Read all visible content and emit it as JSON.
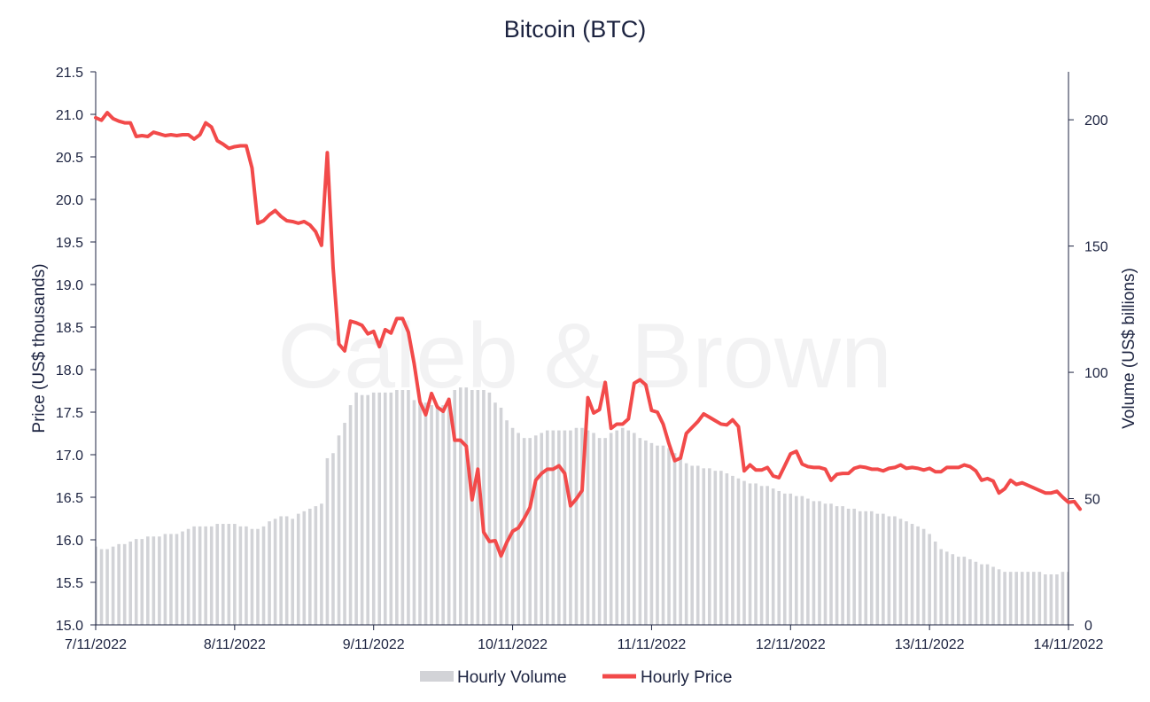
{
  "colors": {
    "price_line": "#f24a4a",
    "volume_bar": "#d2d3d7",
    "text": "#1c2340",
    "axis": "#1c2340",
    "watermark": "#f2f2f3"
  },
  "chart_data": {
    "type": "bar+line",
    "title": "Bitcoin (BTC)",
    "watermark": "Caleb & Brown",
    "ylabel_left": "Price (US$ thousands)",
    "ylabel_right": "Volume (US$ billions)",
    "ylim_left": [
      15.0,
      21.5
    ],
    "ylim_right": [
      0,
      219
    ],
    "yticks_left": [
      "15.0",
      "15.5",
      "16.0",
      "16.5",
      "17.0",
      "17.5",
      "18.0",
      "18.5",
      "19.0",
      "19.5",
      "20.0",
      "20.5",
      "21.0",
      "21.5"
    ],
    "yticks_right": [
      "0",
      "50",
      "100",
      "150",
      "200"
    ],
    "xlim_hours": [
      0,
      168
    ],
    "xticks": [
      {
        "label": "7/11/2022",
        "hour": 0
      },
      {
        "label": "8/11/2022",
        "hour": 24
      },
      {
        "label": "9/11/2022",
        "hour": 48
      },
      {
        "label": "10/11/2022",
        "hour": 72
      },
      {
        "label": "11/11/2022",
        "hour": 96
      },
      {
        "label": "12/11/2022",
        "hour": 120
      },
      {
        "label": "13/11/2022",
        "hour": 144
      },
      {
        "label": "14/11/2022",
        "hour": 168
      }
    ],
    "grid": false,
    "legend_position": "bottom-center",
    "series": [
      {
        "name": "Hourly Volume",
        "type": "bar",
        "axis": "right",
        "values": [
          31,
          30,
          30,
          31,
          32,
          32,
          33,
          34,
          34,
          35,
          35,
          35,
          36,
          36,
          36,
          37,
          38,
          39,
          39,
          39,
          39,
          40,
          40,
          40,
          40,
          39,
          39,
          38,
          38,
          39,
          41,
          42,
          43,
          43,
          42,
          44,
          45,
          46,
          47,
          48,
          66,
          68,
          75,
          80,
          87,
          92,
          91,
          91,
          92,
          92,
          92,
          92,
          93,
          93,
          93,
          89,
          88,
          88,
          87,
          87,
          87,
          90,
          93,
          94,
          94,
          93,
          93,
          93,
          92,
          88,
          86,
          81,
          78,
          76,
          74,
          74,
          75,
          76,
          77,
          77,
          77,
          77,
          77,
          78,
          78,
          77,
          76,
          74,
          74,
          76,
          77,
          78,
          77,
          76,
          74,
          73,
          72,
          71,
          71,
          70,
          68,
          66,
          64,
          63,
          63,
          62,
          62,
          61,
          61,
          60,
          59,
          58,
          57,
          56,
          56,
          55,
          55,
          54,
          53,
          52,
          52,
          51,
          51,
          50,
          49,
          49,
          48,
          48,
          47,
          47,
          46,
          46,
          45,
          45,
          45,
          44,
          44,
          43,
          43,
          42,
          41,
          40,
          39,
          38,
          36,
          33,
          30,
          29,
          28,
          27,
          27,
          26,
          25,
          24,
          24,
          23,
          22,
          21,
          21,
          21,
          21,
          21,
          21,
          21,
          20,
          20,
          20,
          21,
          21
        ]
      },
      {
        "name": "Hourly Price",
        "type": "line",
        "axis": "left",
        "values": [
          20.96,
          20.93,
          21.02,
          20.95,
          20.92,
          20.9,
          20.9,
          20.74,
          20.75,
          20.74,
          20.79,
          20.77,
          20.75,
          20.76,
          20.75,
          20.76,
          20.76,
          20.71,
          20.76,
          20.9,
          20.85,
          20.69,
          20.65,
          20.6,
          20.62,
          20.63,
          20.63,
          20.37,
          19.72,
          19.75,
          19.82,
          19.87,
          19.8,
          19.75,
          19.74,
          19.72,
          19.74,
          19.7,
          19.62,
          19.46,
          20.55,
          19.2,
          18.3,
          18.22,
          18.57,
          18.55,
          18.52,
          18.42,
          18.45,
          18.27,
          18.47,
          18.43,
          18.6,
          18.6,
          18.44,
          18.07,
          17.62,
          17.47,
          17.72,
          17.56,
          17.51,
          17.65,
          17.17,
          17.17,
          17.1,
          16.47,
          16.83,
          16.09,
          15.98,
          15.99,
          15.81,
          15.97,
          16.1,
          16.14,
          16.25,
          16.38,
          16.7,
          16.78,
          16.83,
          16.83,
          16.87,
          16.78,
          16.4,
          16.48,
          16.58,
          17.67,
          17.49,
          17.53,
          17.85,
          17.31,
          17.36,
          17.36,
          17.42,
          17.84,
          17.88,
          17.82,
          17.52,
          17.5,
          17.36,
          17.13,
          16.93,
          16.96,
          17.25,
          17.32,
          17.39,
          17.48,
          17.44,
          17.4,
          17.36,
          17.35,
          17.41,
          17.33,
          16.81,
          16.88,
          16.82,
          16.82,
          16.85,
          16.75,
          16.73,
          16.87,
          17.01,
          17.04,
          16.89,
          16.86,
          16.85,
          16.85,
          16.83,
          16.7,
          16.77,
          16.78,
          16.78,
          16.84,
          16.86,
          16.85,
          16.83,
          16.83,
          16.81,
          16.84,
          16.85,
          16.88,
          16.84,
          16.85,
          16.84,
          16.82,
          16.84,
          16.8,
          16.8,
          16.85,
          16.85,
          16.85,
          16.88,
          16.86,
          16.81,
          16.7,
          16.72,
          16.69,
          16.55,
          16.6,
          16.7,
          16.65,
          16.67,
          16.64,
          16.61,
          16.58,
          16.55,
          16.55,
          16.57,
          16.5,
          16.44,
          16.45,
          16.36
        ]
      }
    ]
  }
}
